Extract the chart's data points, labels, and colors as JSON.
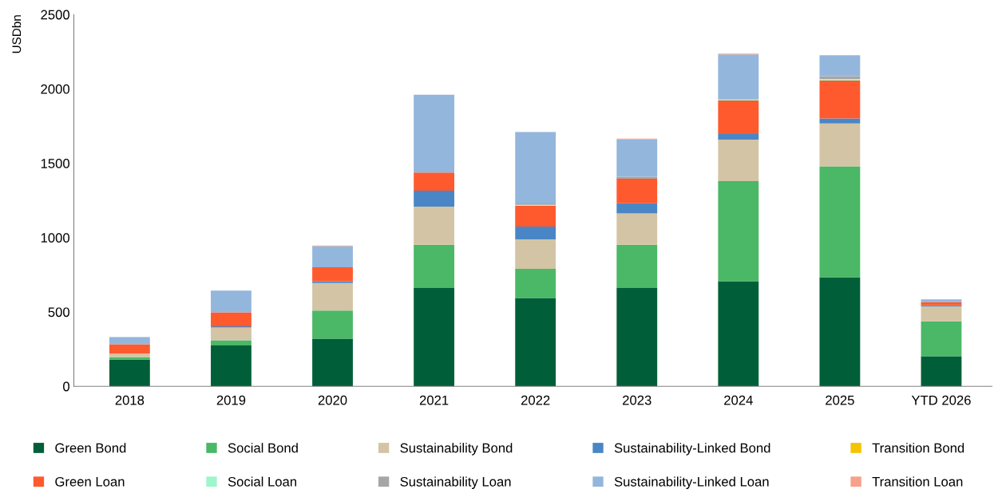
{
  "chart_data": {
    "type": "bar",
    "stacked": true,
    "ylabel": "USDbn",
    "categories": [
      "2018",
      "2019",
      "2020",
      "2021",
      "2022",
      "2023",
      "2024",
      "2025",
      "YTD 2026"
    ],
    "ylim": [
      0,
      2500
    ],
    "yticks": [
      0,
      500,
      1000,
      1500,
      2000,
      2500
    ],
    "grid": false,
    "legend": "bottom",
    "series": [
      {
        "name": "Green Bond",
        "color": "#005f38",
        "values": [
          180,
          274,
          320,
          661,
          594,
          661,
          707,
          733,
          202
        ]
      },
      {
        "name": "Social Bond",
        "color": "#4ab866",
        "values": [
          16,
          35,
          190,
          291,
          196,
          291,
          673,
          746,
          235
        ]
      },
      {
        "name": "Sustainability Bond",
        "color": "#d3c4a5",
        "values": [
          24,
          86,
          185,
          256,
          198,
          210,
          279,
          288,
          101
        ]
      },
      {
        "name": "Sustainability-Linked Bond",
        "color": "#4a86c5",
        "values": [
          null,
          8,
          11,
          108,
          86,
          69,
          38,
          34,
          8
        ]
      },
      {
        "name": "Transition Bond",
        "color": "#f5c400",
        "values": [
          0,
          0,
          0,
          0,
          0,
          0,
          0,
          null,
          0
        ]
      },
      {
        "name": "Green Loan",
        "color": "#ff5a2e",
        "values": [
          63,
          94,
          94,
          121,
          141,
          165,
          225,
          255,
          20
        ]
      },
      {
        "name": "Social Loan",
        "color": "#9ff5cc",
        "values": [
          0,
          0,
          0,
          0,
          5,
          0,
          6,
          10,
          0
        ]
      },
      {
        "name": "Sustainability Loan",
        "color": "#a6a6a6",
        "values": [
          0,
          0,
          0,
          null,
          10,
          14,
          0,
          19,
          0
        ]
      },
      {
        "name": "Sustainability-Linked Loan",
        "color": "#93b6dc",
        "values": [
          48,
          147,
          142,
          524,
          480,
          250,
          304,
          141,
          18
        ]
      },
      {
        "name": "Transition Loan",
        "color": "#f7a08a",
        "values": [
          0,
          0,
          5,
          0,
          null,
          5,
          5,
          0,
          0
        ]
      }
    ]
  }
}
